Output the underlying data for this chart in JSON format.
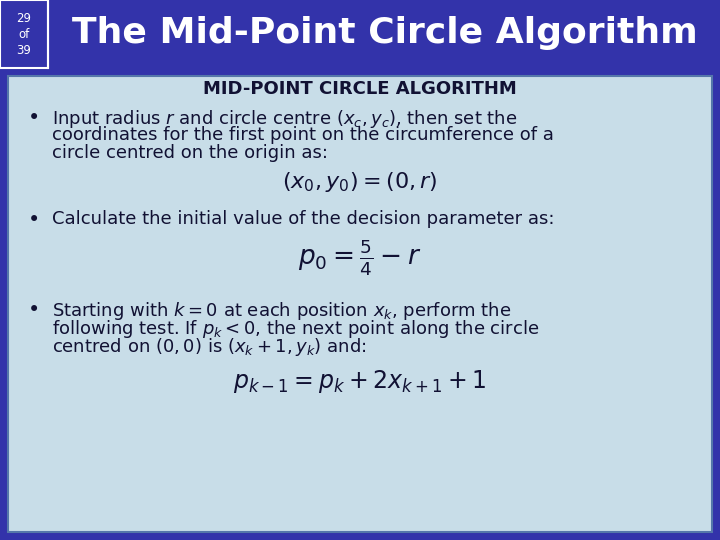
{
  "slide_number": "29\nof\n39",
  "title": "The Mid-Point Circle Algorithm",
  "header_bg": "#3333AA",
  "header_text_color": "#FFFFFF",
  "body_bg": "#C8DDE8",
  "body_border": "#5577AA",
  "slide_num_color": "#FFFFFF",
  "title_fontsize": 26,
  "body_fontsize": 13,
  "algo_title": "MID-POINT CIRCLE ALGORITHM"
}
